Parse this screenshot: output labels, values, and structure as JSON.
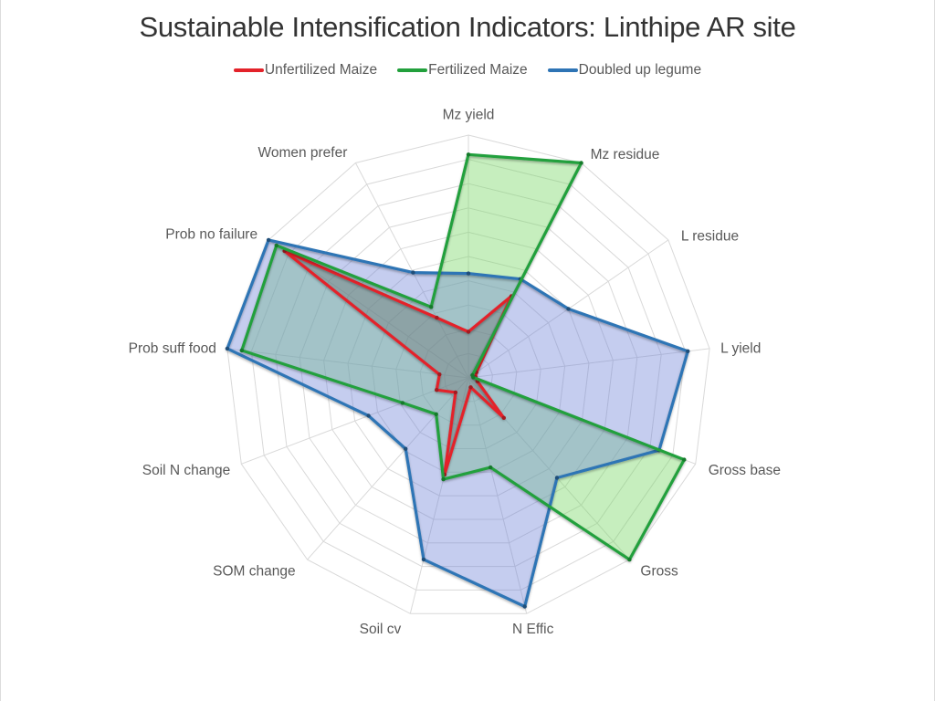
{
  "chart_data": {
    "type": "radar",
    "title": "Sustainable Intensification Indicators: Linthipe AR site",
    "legend_position": "top",
    "categories": [
      "Mz yield",
      "Mz residue",
      "L residue",
      "L yield",
      "Gross base",
      "Gross",
      "N Effic",
      "Soil cv",
      "SOM change",
      "Soil N change",
      "Prob suff food",
      "Prob no failure",
      "Women prefer"
    ],
    "series": [
      {
        "name": "Unfertilized Maize",
        "line_color": "#E3222A",
        "fill_color": "rgba(96,96,96,0.33)",
        "marker_color": "#A31B20",
        "values": [
          0.19,
          0.38,
          0.04,
          0.03,
          0.04,
          0.22,
          0.04,
          0.41,
          0.08,
          0.14,
          0.12,
          0.92,
          0.28
        ]
      },
      {
        "name": "Fertilized Maize",
        "line_color": "#22A03C",
        "fill_color": "rgba(120,215,100,0.42)",
        "marker_color": "#157A2B",
        "values": [
          0.92,
          1.0,
          0.02,
          0.02,
          0.95,
          1.0,
          0.38,
          0.43,
          0.2,
          0.29,
          0.94,
          0.96,
          0.33
        ]
      },
      {
        "name": "Doubled up legume",
        "line_color": "#2E74B5",
        "fill_color": "rgba(110,130,215,0.40)",
        "marker_color": "#1F4E79",
        "values": [
          0.43,
          0.46,
          0.5,
          0.91,
          0.84,
          0.55,
          0.97,
          0.77,
          0.39,
          0.44,
          1.0,
          1.0,
          0.49
        ]
      }
    ],
    "axis": {
      "min": 0,
      "max": 1.0,
      "rings": 10
    },
    "grid_color": "#D9D9D9",
    "label_color": "#595959"
  }
}
